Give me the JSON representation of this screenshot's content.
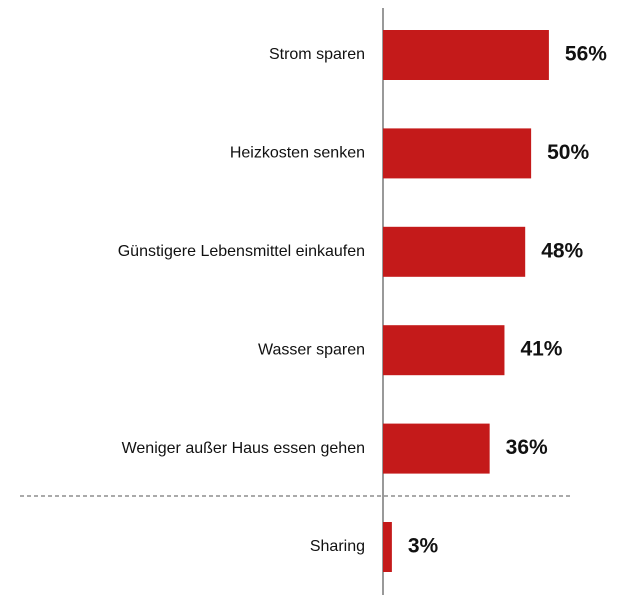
{
  "chart_data": {
    "type": "bar",
    "orientation": "horizontal",
    "categories": [
      "Strom sparen",
      "Heizkosten senken",
      "Günstigere Lebensmittel einkaufen",
      "Wasser sparen",
      "Weniger außer Haus essen gehen",
      "Sharing"
    ],
    "values": [
      56,
      50,
      48,
      41,
      36,
      3
    ],
    "value_labels": [
      "56%",
      "50%",
      "48%",
      "41%",
      "36%",
      "3%"
    ],
    "color": "#c41a1a",
    "xlim": [
      0,
      80
    ]
  }
}
